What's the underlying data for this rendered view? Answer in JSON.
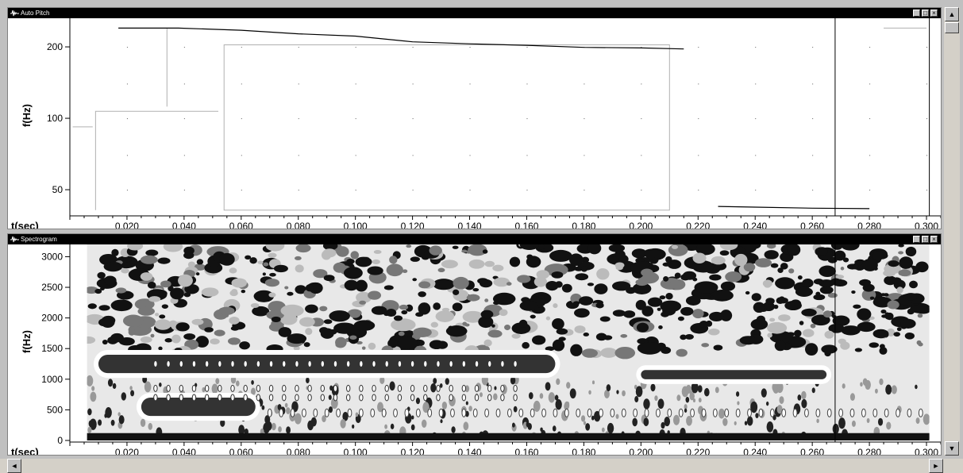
{
  "pitch_window": {
    "title": "Auto Pitch",
    "buttons": {
      "minimize": "_",
      "maximize": "□",
      "close": "×"
    }
  },
  "spectrogram_window": {
    "title": "Spectrogram",
    "buttons": {
      "minimize": "_",
      "maximize": "□",
      "close": "×"
    }
  },
  "scrollbars": {
    "up_arrow": "▲",
    "down_arrow": "▼",
    "left_arrow": "◄",
    "right_arrow": "►"
  },
  "icons": {
    "window_icon": "waveform-icon",
    "scroll_up": "arrow-up-icon",
    "scroll_down": "arrow-down-icon",
    "scroll_left": "arrow-left-icon",
    "scroll_right": "arrow-right-icon"
  },
  "colors": {
    "titlebar": "#000000",
    "plot_bg": "#ffffff",
    "chrome": "#c0c0c0",
    "spec_dark": "#333333"
  },
  "chart_data": [
    {
      "type": "line",
      "ylabel": "f(Hz)",
      "xlabel": "t(sec)",
      "y_scale": "log",
      "x_range": [
        0.0,
        0.305
      ],
      "y_range": [
        40,
        260
      ],
      "x_ticks": [
        "0.020",
        "0.040",
        "0.060",
        "0.080",
        "0.100",
        "0.120",
        "0.140",
        "0.160",
        "0.180",
        "0.200",
        "0.220",
        "0.240",
        "0.260",
        "0.280",
        "0.300"
      ],
      "y_ticks": [
        "50",
        "100",
        "200"
      ],
      "series": [
        {
          "points": [
            [
              0.017,
              240
            ],
            [
              0.038,
              240
            ],
            [
              0.06,
              235
            ],
            [
              0.08,
              227
            ],
            [
              0.1,
              222
            ],
            [
              0.12,
              210
            ],
            [
              0.14,
              206
            ],
            [
              0.16,
              203
            ],
            [
              0.18,
              199
            ],
            [
              0.2,
              198
            ],
            [
              0.215,
              196
            ]
          ]
        },
        {
          "points": [
            [
              0.227,
              42.5
            ],
            [
              0.24,
              42.2
            ],
            [
              0.26,
              41.8
            ],
            [
              0.28,
              41.6
            ]
          ]
        }
      ],
      "cursor_t": 0.268
    },
    {
      "type": "heatmap",
      "ylabel": "f(Hz)",
      "xlabel": "t(sec)",
      "x_range": [
        0.0,
        0.305
      ],
      "y_range": [
        0,
        3200
      ],
      "x_ticks": [
        "0.020",
        "0.040",
        "0.060",
        "0.080",
        "0.100",
        "0.120",
        "0.140",
        "0.160",
        "0.180",
        "0.200",
        "0.220",
        "0.240",
        "0.260",
        "0.280",
        "0.300"
      ],
      "y_ticks": [
        "0",
        "500",
        "1000",
        "1500",
        "2000",
        "2500",
        "3000"
      ],
      "formant_bands": [
        {
          "t": [
            0.01,
            0.17
          ],
          "f": [
            1100,
            1400
          ]
        },
        {
          "t": [
            0.025,
            0.065
          ],
          "f": [
            400,
            700
          ]
        },
        {
          "t": [
            0.2,
            0.265
          ],
          "f": [
            1000,
            1150
          ]
        }
      ],
      "cursor_t": 0.268
    }
  ]
}
